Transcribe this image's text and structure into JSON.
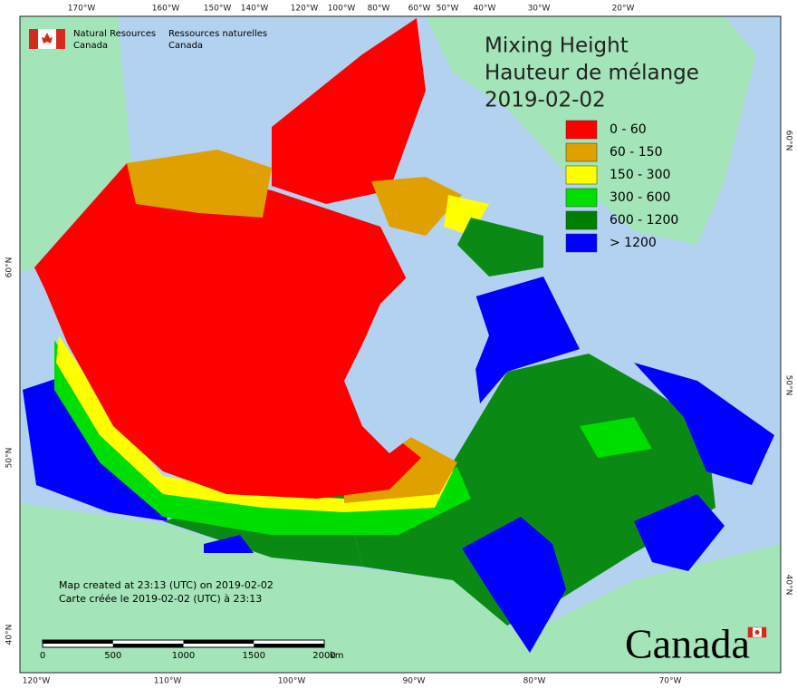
{
  "header": {
    "org_en": [
      "Natural Resources",
      "Canada"
    ],
    "org_fr": [
      "Ressources naturelles",
      "Canada"
    ]
  },
  "title": [
    "Mixing Height",
    "Hauteur de mélange",
    "2019-02-02"
  ],
  "legend": [
    {
      "label": "0 - 60",
      "color": "#ff0000"
    },
    {
      "label": "60 - 150",
      "color": "#e0a000"
    },
    {
      "label": "150 - 300",
      "color": "#ffff00"
    },
    {
      "label": "300 - 600",
      "color": "#00e000"
    },
    {
      "label": "600 - 1200",
      "color": "#008000"
    },
    {
      "label": "> 1200",
      "color": "#0000ff"
    }
  ],
  "top_longitudes": [
    "170°W",
    "160°W",
    "150°W",
    "140°W",
    "120°W",
    "100°W",
    "80°W",
    "60°W",
    "50°W",
    "40°W",
    "30°W",
    "20°W"
  ],
  "bottom_longitudes": [
    "120°W",
    "110°W",
    "100°W",
    "90°W",
    "80°W",
    "70°W"
  ],
  "left_latitudes": [
    "60°N",
    "50°N",
    "40°N"
  ],
  "right_latitudes": [
    "60°N",
    "50°N",
    "40°N"
  ],
  "footer": {
    "created_en": "Map created at 23:13 (UTC) on 2019-02-02",
    "created_fr": "Carte créée le 2019-02-02 (UTC) à 23:13"
  },
  "scale_bar": {
    "labels": [
      "0",
      "500",
      "1000",
      "1500",
      "2000"
    ],
    "unit": "km"
  },
  "wordmark": "Canada"
}
